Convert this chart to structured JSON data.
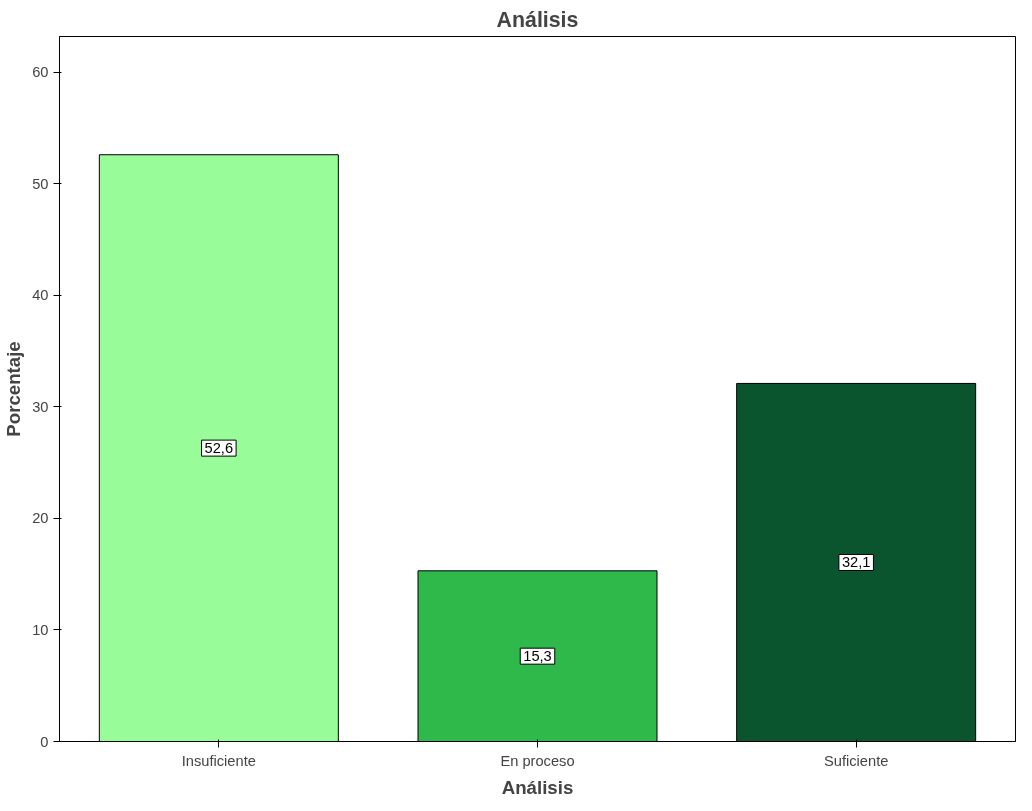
{
  "chart_data": {
    "type": "bar",
    "title": "Análisis",
    "xlabel": "Análisis",
    "ylabel": "Porcentaje",
    "categories": [
      "Insuficiente",
      "En proceso",
      "Suficiente"
    ],
    "values": [
      52.6,
      15.3,
      32.1
    ],
    "colors": [
      "#98fd98",
      "#2fb94a",
      "#0b552e"
    ],
    "value_labels": [
      "52,6",
      "15,3",
      "32,1"
    ],
    "ylim": [
      0,
      63.2
    ],
    "yticks": [
      0,
      10,
      20,
      30,
      40,
      50,
      60
    ],
    "grid": false
  }
}
